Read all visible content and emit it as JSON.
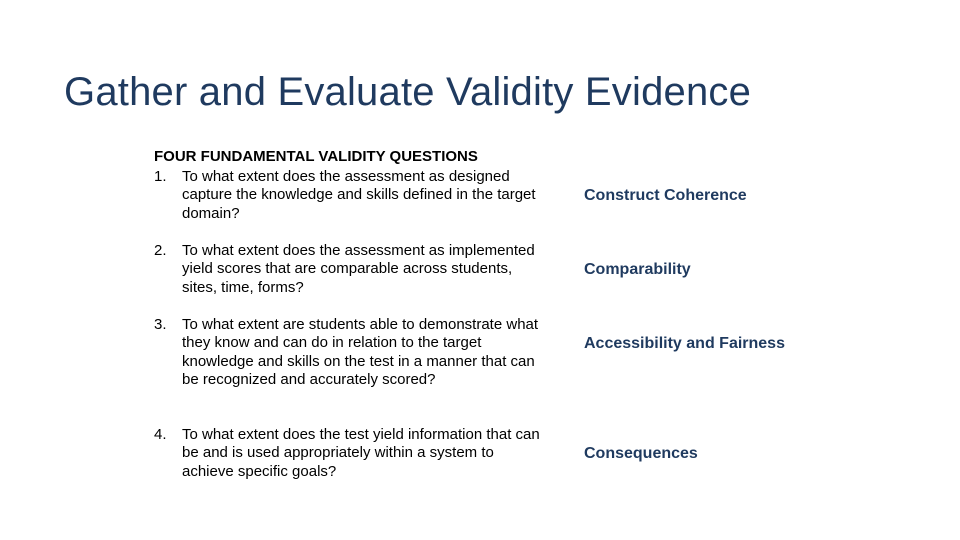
{
  "slide": {
    "title": "Gather and Evaluate Validity Evidence",
    "subheading": "FOUR FUNDAMENTAL VALIDITY QUESTIONS",
    "title_color": "#1f3a5f",
    "concept_color": "#1f3a5f",
    "text_color": "#000000",
    "background_color": "#ffffff",
    "title_fontsize": 40,
    "body_fontsize": 15,
    "concept_fontsize": 16,
    "items": [
      {
        "num": "1.",
        "question": "To what extent does the assessment as designed capture the knowledge and skills defined in the target domain?",
        "concept": "Construct Coherence"
      },
      {
        "num": "2.",
        "question": "To what extent does the assessment as implemented yield scores that are comparable across students, sites, time, forms?",
        "concept": "Comparability"
      },
      {
        "num": "3.",
        "question": "To what extent are students able to demonstrate what they know and can do in relation to the target knowledge and skills on the test in a manner that can be recognized and accurately scored?",
        "concept": "Accessibility and Fairness"
      },
      {
        "num": "4.",
        "question": "To what extent does the test yield information that can be and is used appropriately within a system to achieve specific goals?",
        "concept": "Consequences"
      }
    ]
  }
}
